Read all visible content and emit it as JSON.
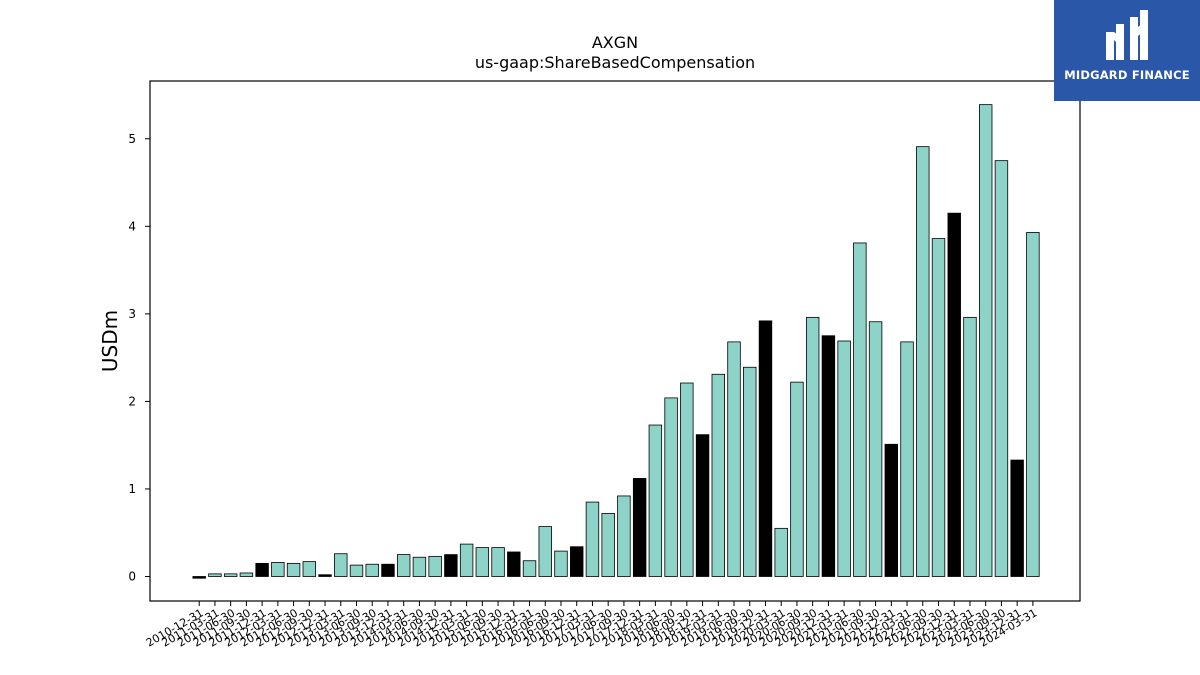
{
  "brand": {
    "name": "MIDGARD FINANCE",
    "color": "#2b57a8",
    "icon": "midgard-logo-icon"
  },
  "chart_data": {
    "type": "bar",
    "title": "AXGN",
    "subtitle": "us-gaap:ShareBasedCompensation",
    "xlabel": "",
    "ylabel": "USDm",
    "ylim": [
      -0.28,
      5.66
    ],
    "yticks": [
      0,
      1,
      2,
      3,
      4,
      5
    ],
    "grid": false,
    "colors": {
      "quarter": "#8dd3c7",
      "year_end": "#000000",
      "edge": "#000000"
    },
    "categories": [
      "2010-12-31",
      "2011-03-31",
      "2011-06-30",
      "2011-09-30",
      "2011-12-31",
      "2012-03-31",
      "2012-06-30",
      "2012-09-30",
      "2012-12-31",
      "2013-03-31",
      "2013-06-30",
      "2013-09-30",
      "2013-12-31",
      "2014-03-31",
      "2014-06-30",
      "2014-09-30",
      "2014-12-31",
      "2015-03-31",
      "2015-06-30",
      "2015-09-30",
      "2015-12-31",
      "2016-03-31",
      "2016-06-30",
      "2016-09-30",
      "2016-12-31",
      "2017-03-31",
      "2017-06-30",
      "2017-09-30",
      "2017-12-31",
      "2018-03-31",
      "2018-06-30",
      "2018-09-30",
      "2018-12-31",
      "2019-03-31",
      "2019-06-30",
      "2019-09-30",
      "2019-12-31",
      "2020-03-31",
      "2020-06-30",
      "2020-09-30",
      "2020-12-31",
      "2021-03-31",
      "2021-06-30",
      "2021-09-30",
      "2021-12-31",
      "2022-03-31",
      "2022-06-30",
      "2022-09-30",
      "2022-12-31",
      "2023-03-31",
      "2023-06-30",
      "2023-09-30",
      "2023-12-31",
      "2024-03-31"
    ],
    "values": [
      -0.02,
      0.03,
      0.03,
      0.04,
      0.15,
      0.16,
      0.15,
      0.17,
      0.02,
      0.26,
      0.13,
      0.14,
      0.14,
      0.25,
      0.22,
      0.23,
      0.25,
      0.37,
      0.33,
      0.33,
      0.28,
      0.18,
      0.57,
      0.29,
      0.34,
      0.85,
      0.72,
      0.92,
      1.12,
      1.73,
      2.04,
      2.21,
      1.62,
      2.31,
      2.68,
      2.39,
      2.92,
      0.55,
      2.22,
      2.96,
      2.75,
      2.69,
      3.81,
      2.91,
      1.51,
      2.68,
      4.91,
      3.86,
      4.15,
      2.96,
      5.39,
      4.75,
      1.33,
      3.93
    ],
    "year_end": [
      true,
      false,
      false,
      false,
      true,
      false,
      false,
      false,
      true,
      false,
      false,
      false,
      true,
      false,
      false,
      false,
      true,
      false,
      false,
      false,
      true,
      false,
      false,
      false,
      true,
      false,
      false,
      false,
      true,
      false,
      false,
      false,
      true,
      false,
      false,
      false,
      true,
      false,
      false,
      false,
      true,
      false,
      false,
      false,
      true,
      false,
      false,
      false,
      true,
      false,
      false,
      false,
      true,
      false
    ]
  }
}
